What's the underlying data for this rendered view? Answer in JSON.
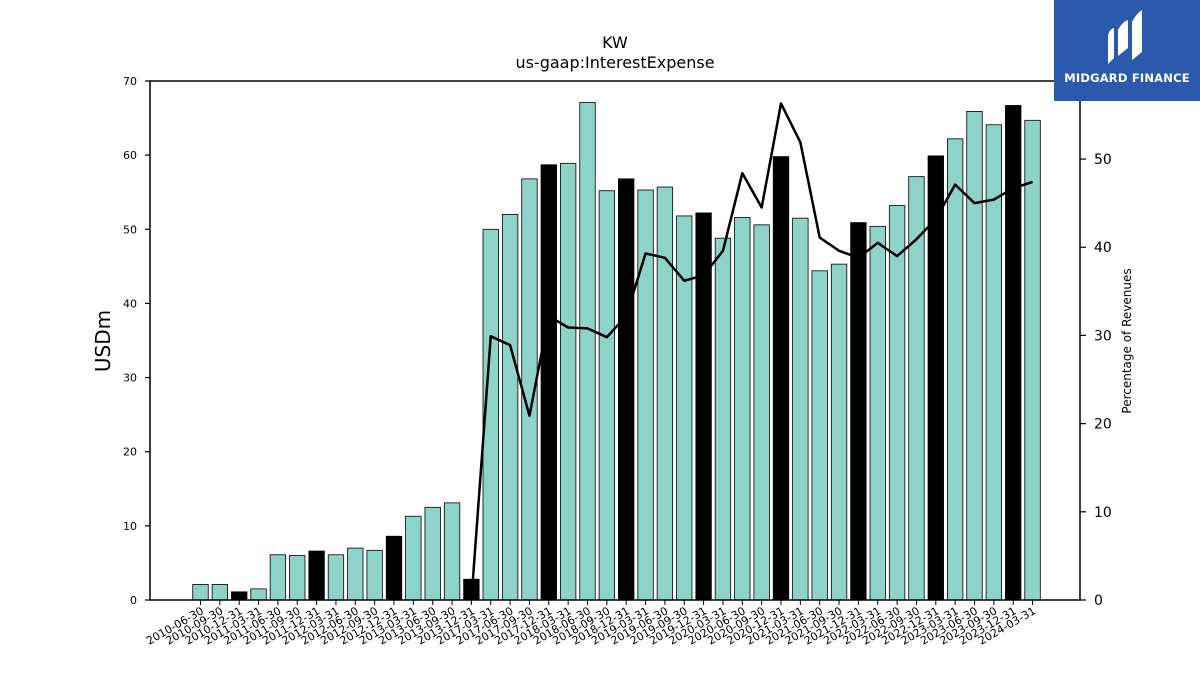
{
  "header": {
    "title": "KW",
    "subtitle": "us-gaap:InterestExpense"
  },
  "logo": {
    "text": "MIDGARD FINANCE",
    "background": "#2b5aad"
  },
  "chart_data": {
    "type": "bar",
    "title": "KW",
    "subtitle": "us-gaap:InterestExpense",
    "ylabel": "USDm",
    "y2label": "Percentage of Revenues",
    "ylim": [
      0,
      70
    ],
    "y2lim": [
      0,
      58.85
    ],
    "yticks": [
      0,
      10,
      20,
      30,
      40,
      50,
      60,
      70
    ],
    "y2ticks": [
      0,
      10,
      20,
      30,
      40,
      50
    ],
    "grid": false,
    "categories": [
      "2010-06-30",
      "2010-09-30",
      "2010-12-31",
      "2011-03-31",
      "2011-06-30",
      "2011-09-30",
      "2011-12-31",
      "2012-03-31",
      "2012-06-30",
      "2012-09-30",
      "2012-12-31",
      "2013-03-31",
      "2013-06-30",
      "2013-09-30",
      "2013-12-31",
      "2017-03-31",
      "2017-06-30",
      "2017-09-30",
      "2017-12-31",
      "2018-03-31",
      "2018-06-30",
      "2018-09-30",
      "2018-12-31",
      "2019-03-31",
      "2019-06-30",
      "2019-09-30",
      "2019-12-31",
      "2020-03-31",
      "2020-06-30",
      "2020-09-30",
      "2020-12-31",
      "2021-03-31",
      "2021-06-30",
      "2021-09-30",
      "2021-12-31",
      "2022-03-31",
      "2022-06-30",
      "2022-09-30",
      "2022-12-31",
      "2023-03-31",
      "2023-06-30",
      "2023-09-30",
      "2023-12-31",
      "2024-03-31"
    ],
    "series": [
      {
        "kind": "bar",
        "axis": "left",
        "values": [
          2.1,
          2.1,
          1.1,
          1.5,
          6.1,
          6.0,
          6.6,
          6.1,
          7.0,
          6.7,
          8.6,
          11.3,
          12.5,
          13.1,
          2.8,
          50.0,
          52.0,
          56.8,
          58.7,
          58.9,
          67.1,
          55.2,
          56.8,
          55.3,
          55.7,
          51.8,
          52.2,
          48.8,
          51.6,
          50.6,
          59.8,
          51.5,
          44.4,
          45.3,
          50.9,
          50.4,
          53.2,
          57.1,
          59.9,
          62.2,
          65.9,
          64.1,
          66.7,
          64.7
        ],
        "colors": [
          "#8dd3c7",
          "#8dd3c7",
          "#000000",
          "#8dd3c7",
          "#8dd3c7",
          "#8dd3c7",
          "#000000",
          "#8dd3c7",
          "#8dd3c7",
          "#8dd3c7",
          "#000000",
          "#8dd3c7",
          "#8dd3c7",
          "#8dd3c7",
          "#000000",
          "#8dd3c7",
          "#8dd3c7",
          "#8dd3c7",
          "#000000",
          "#8dd3c7",
          "#8dd3c7",
          "#8dd3c7",
          "#000000",
          "#8dd3c7",
          "#8dd3c7",
          "#8dd3c7",
          "#000000",
          "#8dd3c7",
          "#8dd3c7",
          "#8dd3c7",
          "#000000",
          "#8dd3c7",
          "#8dd3c7",
          "#8dd3c7",
          "#000000",
          "#8dd3c7",
          "#8dd3c7",
          "#8dd3c7",
          "#000000",
          "#8dd3c7",
          "#8dd3c7",
          "#8dd3c7",
          "#000000",
          "#8dd3c7"
        ]
      },
      {
        "kind": "line",
        "axis": "right",
        "color": "#000000",
        "values": [
          null,
          null,
          null,
          null,
          null,
          null,
          null,
          null,
          null,
          null,
          null,
          null,
          null,
          null,
          0.0,
          29.9,
          28.9,
          20.9,
          32.2,
          30.9,
          30.8,
          29.8,
          32.2,
          39.3,
          38.8,
          36.2,
          36.8,
          39.6,
          48.4,
          44.5,
          56.3,
          51.9,
          41.1,
          39.6,
          38.8,
          40.5,
          39.0,
          40.9,
          43.2,
          47.1,
          45.0,
          45.4,
          46.7,
          47.4
        ]
      }
    ]
  }
}
